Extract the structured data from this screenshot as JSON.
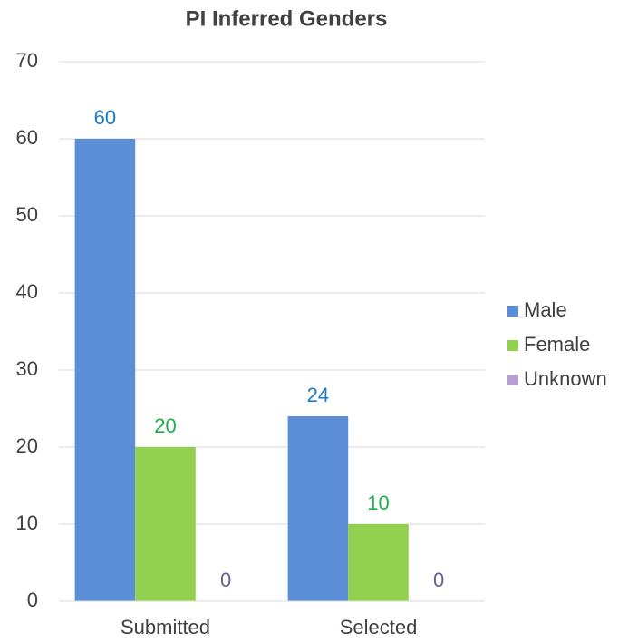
{
  "chart_data": {
    "type": "bar",
    "title": "PI Inferred Genders",
    "categories": [
      "Submitted",
      "Selected"
    ],
    "series": [
      {
        "name": "Male",
        "color": "#5b8ed6",
        "label_color": "#1f78c8",
        "values": [
          60,
          24
        ]
      },
      {
        "name": "Female",
        "color": "#92d050",
        "label_color": "#1fae4c",
        "values": [
          20,
          10
        ]
      },
      {
        "name": "Unknown",
        "color": "#b4a0d0",
        "label_color": "#6b5a9a",
        "values": [
          0,
          0
        ]
      }
    ],
    "ylim": [
      0,
      70
    ],
    "yticks": [
      0,
      10,
      20,
      30,
      40,
      50,
      60,
      70
    ],
    "grid": true,
    "legend": "right"
  }
}
